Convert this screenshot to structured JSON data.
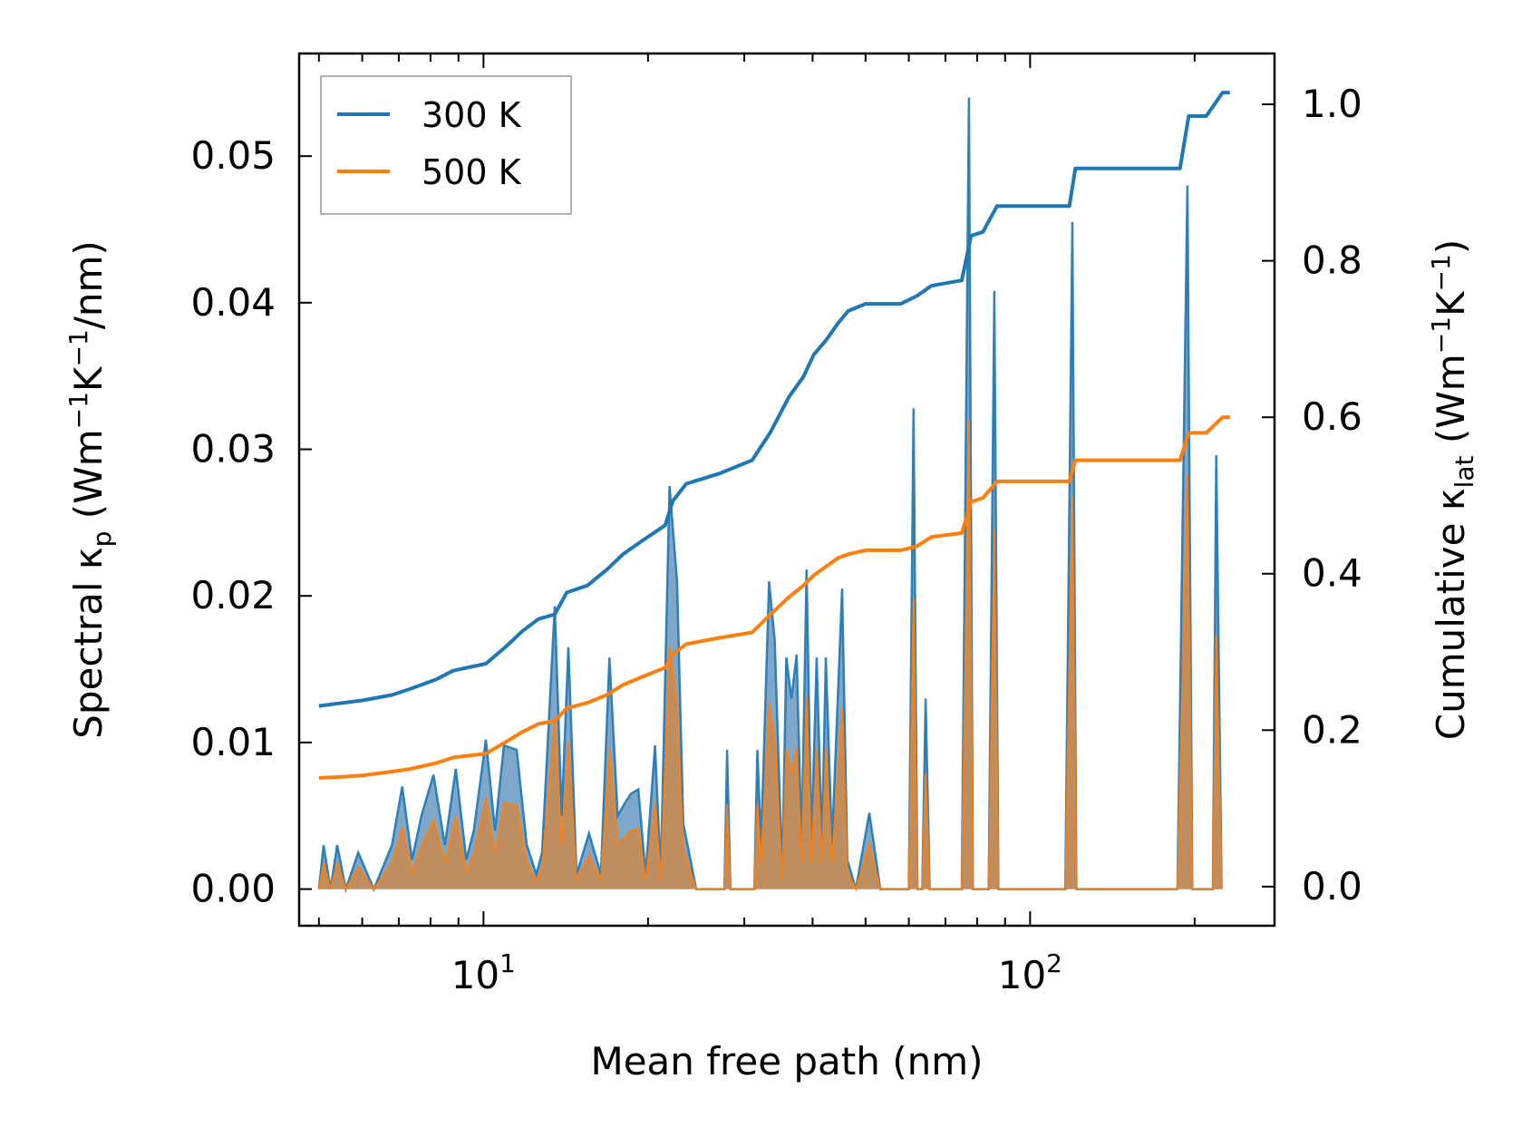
{
  "chart_data": {
    "type": "line",
    "x_scale": "log",
    "xlabel": "Mean free path (nm)",
    "ylabel_left": {
      "main": "Spectral κ",
      "sub": "p",
      "unit_open": " (Wm",
      "exp1": "−1",
      "mid": "K",
      "exp2": "−1",
      "unit_close": "/nm)"
    },
    "ylabel_right": {
      "main": "Cumulative κ",
      "sub": "lat",
      "unit_open": " (Wm",
      "exp1": "−1",
      "mid": "K",
      "exp2": "−1",
      "unit_close": ")"
    },
    "xlim": [
      4.6,
      280
    ],
    "ylim_left": [
      -0.0025,
      0.057
    ],
    "ylim_right": [
      -0.05,
      1.065
    ],
    "x_major_ticks": [
      {
        "value": 10,
        "base": "10",
        "exp": "1"
      },
      {
        "value": 100,
        "base": "10",
        "exp": "2"
      }
    ],
    "left_ticks": [
      {
        "value": 0.0,
        "label": "0.00"
      },
      {
        "value": 0.01,
        "label": "0.01"
      },
      {
        "value": 0.02,
        "label": "0.02"
      },
      {
        "value": 0.03,
        "label": "0.03"
      },
      {
        "value": 0.04,
        "label": "0.04"
      },
      {
        "value": 0.05,
        "label": "0.05"
      }
    ],
    "right_ticks": [
      {
        "value": 0.0,
        "label": "0.0"
      },
      {
        "value": 0.2,
        "label": "0.2"
      },
      {
        "value": 0.4,
        "label": "0.4"
      },
      {
        "value": 0.6,
        "label": "0.6"
      },
      {
        "value": 0.8,
        "label": "0.8"
      },
      {
        "value": 1.0,
        "label": "1.0"
      }
    ],
    "legend": {
      "position": "top-left"
    },
    "series": [
      {
        "name": "300 K",
        "color": "#1f77b4",
        "cumulative": [
          [
            5.0,
            0.231
          ],
          [
            5.4,
            0.234
          ],
          [
            6.0,
            0.238
          ],
          [
            6.8,
            0.245
          ],
          [
            7.3,
            0.252
          ],
          [
            8.2,
            0.265
          ],
          [
            8.8,
            0.276
          ],
          [
            10.1,
            0.285
          ],
          [
            11.0,
            0.307
          ],
          [
            11.8,
            0.327
          ],
          [
            12.6,
            0.342
          ],
          [
            13.5,
            0.348
          ],
          [
            14.2,
            0.376
          ],
          [
            15.5,
            0.385
          ],
          [
            16.8,
            0.405
          ],
          [
            18.0,
            0.425
          ],
          [
            19.5,
            0.442
          ],
          [
            21.5,
            0.462
          ],
          [
            22.2,
            0.493
          ],
          [
            23.5,
            0.515
          ],
          [
            27.0,
            0.528
          ],
          [
            31.0,
            0.545
          ],
          [
            33.5,
            0.581
          ],
          [
            36.2,
            0.626
          ],
          [
            38.5,
            0.652
          ],
          [
            40.2,
            0.68
          ],
          [
            42.5,
            0.7
          ],
          [
            44.5,
            0.72
          ],
          [
            46.5,
            0.736
          ],
          [
            50.0,
            0.745
          ],
          [
            58.0,
            0.745
          ],
          [
            62.0,
            0.755
          ],
          [
            66.0,
            0.768
          ],
          [
            75.0,
            0.775
          ],
          [
            78.0,
            0.832
          ],
          [
            82.0,
            0.837
          ],
          [
            87.0,
            0.87
          ],
          [
            118.0,
            0.87
          ],
          [
            121.0,
            0.918
          ],
          [
            188.0,
            0.918
          ],
          [
            195.0,
            0.985
          ],
          [
            210.0,
            0.985
          ],
          [
            225.0,
            1.015
          ],
          [
            232.0,
            1.015
          ]
        ],
        "spectral": [
          [
            5.0,
            0.0
          ],
          [
            5.1,
            0.003
          ],
          [
            5.25,
            0.0
          ],
          [
            5.4,
            0.003
          ],
          [
            5.6,
            0.0
          ],
          [
            5.9,
            0.0025
          ],
          [
            6.3,
            0.0
          ],
          [
            6.8,
            0.003
          ],
          [
            7.1,
            0.007
          ],
          [
            7.4,
            0.002
          ],
          [
            7.7,
            0.005
          ],
          [
            8.1,
            0.0078
          ],
          [
            8.5,
            0.003
          ],
          [
            8.9,
            0.0082
          ],
          [
            9.3,
            0.002
          ],
          [
            9.6,
            0.004
          ],
          [
            10.1,
            0.0102
          ],
          [
            10.5,
            0.004
          ],
          [
            10.9,
            0.0098
          ],
          [
            11.5,
            0.0095
          ],
          [
            12.0,
            0.003
          ],
          [
            12.5,
            0.001
          ],
          [
            12.8,
            0.0025
          ],
          [
            13.5,
            0.0193
          ],
          [
            13.9,
            0.005
          ],
          [
            14.3,
            0.0165
          ],
          [
            14.8,
            0.001
          ],
          [
            15.6,
            0.0038
          ],
          [
            16.4,
            0.001
          ],
          [
            17.0,
            0.0158
          ],
          [
            17.6,
            0.005
          ],
          [
            18.1,
            0.0058
          ],
          [
            18.6,
            0.0065
          ],
          [
            19.2,
            0.0068
          ],
          [
            19.8,
            0.001
          ],
          [
            20.6,
            0.0098
          ],
          [
            21.1,
            0.001
          ],
          [
            21.9,
            0.0275
          ],
          [
            22.6,
            0.021
          ],
          [
            23.2,
            0.0045
          ],
          [
            24.5,
            0.0
          ],
          [
            27.6,
            0.0
          ],
          [
            27.9,
            0.0095
          ],
          [
            28.3,
            0.0
          ],
          [
            31.3,
            0.0
          ],
          [
            31.7,
            0.0095
          ],
          [
            32.2,
            0.003
          ],
          [
            33.3,
            0.021
          ],
          [
            34.1,
            0.017
          ],
          [
            35.2,
            0.001
          ],
          [
            35.8,
            0.0158
          ],
          [
            36.6,
            0.013
          ],
          [
            37.4,
            0.016
          ],
          [
            38.2,
            0.003
          ],
          [
            39.0,
            0.0218
          ],
          [
            39.8,
            0.003
          ],
          [
            40.7,
            0.0158
          ],
          [
            41.6,
            0.003
          ],
          [
            42.3,
            0.0158
          ],
          [
            43.4,
            0.003
          ],
          [
            45.3,
            0.0205
          ],
          [
            46.3,
            0.002
          ],
          [
            48.0,
            0.0
          ],
          [
            50.8,
            0.0052
          ],
          [
            53.2,
            0.0
          ],
          [
            58.0,
            0.0
          ],
          [
            60.0,
            0.0
          ],
          [
            61.2,
            0.0328
          ],
          [
            62.2,
            0.0
          ],
          [
            63.5,
            0.0
          ],
          [
            64.4,
            0.013
          ],
          [
            65.5,
            0.0
          ],
          [
            75.0,
            0.0
          ],
          [
            77.3,
            0.054
          ],
          [
            78.6,
            0.0
          ],
          [
            84.0,
            0.0
          ],
          [
            86.0,
            0.0408
          ],
          [
            87.5,
            0.0
          ],
          [
            116.0,
            0.0
          ],
          [
            119.5,
            0.0455
          ],
          [
            121.5,
            0.0
          ],
          [
            186.0,
            0.0
          ],
          [
            194.0,
            0.048
          ],
          [
            198.0,
            0.0
          ],
          [
            216.0,
            0.0
          ],
          [
            219.0,
            0.0296
          ],
          [
            224.0,
            0.0
          ]
        ]
      },
      {
        "name": "500 K",
        "color": "#ff7f0e",
        "cumulative": [
          [
            5.0,
            0.139
          ],
          [
            5.4,
            0.14
          ],
          [
            6.0,
            0.142
          ],
          [
            6.8,
            0.147
          ],
          [
            7.3,
            0.15
          ],
          [
            8.2,
            0.158
          ],
          [
            8.8,
            0.165
          ],
          [
            10.1,
            0.17
          ],
          [
            11.0,
            0.185
          ],
          [
            11.8,
            0.198
          ],
          [
            12.6,
            0.208
          ],
          [
            13.5,
            0.212
          ],
          [
            14.2,
            0.228
          ],
          [
            15.5,
            0.235
          ],
          [
            16.8,
            0.245
          ],
          [
            18.0,
            0.258
          ],
          [
            19.5,
            0.268
          ],
          [
            21.5,
            0.28
          ],
          [
            22.2,
            0.297
          ],
          [
            23.5,
            0.31
          ],
          [
            27.0,
            0.318
          ],
          [
            31.0,
            0.325
          ],
          [
            33.5,
            0.348
          ],
          [
            36.2,
            0.37
          ],
          [
            38.5,
            0.385
          ],
          [
            40.2,
            0.398
          ],
          [
            42.5,
            0.41
          ],
          [
            44.5,
            0.42
          ],
          [
            46.5,
            0.425
          ],
          [
            50.0,
            0.43
          ],
          [
            58.0,
            0.43
          ],
          [
            62.0,
            0.435
          ],
          [
            66.0,
            0.447
          ],
          [
            75.0,
            0.452
          ],
          [
            78.0,
            0.492
          ],
          [
            82.0,
            0.497
          ],
          [
            87.0,
            0.518
          ],
          [
            118.0,
            0.518
          ],
          [
            121.0,
            0.545
          ],
          [
            188.0,
            0.545
          ],
          [
            195.0,
            0.58
          ],
          [
            210.0,
            0.58
          ],
          [
            225.0,
            0.6
          ],
          [
            232.0,
            0.6
          ]
        ],
        "spectral": [
          [
            5.0,
            0.0
          ],
          [
            5.1,
            0.0018
          ],
          [
            5.25,
            0.0
          ],
          [
            5.4,
            0.0018
          ],
          [
            5.6,
            0.0
          ],
          [
            5.9,
            0.0015
          ],
          [
            6.3,
            0.0
          ],
          [
            6.8,
            0.0018
          ],
          [
            7.1,
            0.0042
          ],
          [
            7.4,
            0.0012
          ],
          [
            7.7,
            0.003
          ],
          [
            8.1,
            0.0047
          ],
          [
            8.5,
            0.0018
          ],
          [
            8.9,
            0.005
          ],
          [
            9.3,
            0.0012
          ],
          [
            9.6,
            0.0024
          ],
          [
            10.1,
            0.0062
          ],
          [
            10.5,
            0.0024
          ],
          [
            10.9,
            0.0059
          ],
          [
            11.5,
            0.0057
          ],
          [
            12.0,
            0.0018
          ],
          [
            12.5,
            0.0006
          ],
          [
            12.8,
            0.0015
          ],
          [
            13.5,
            0.0117
          ],
          [
            13.9,
            0.003
          ],
          [
            14.3,
            0.01
          ],
          [
            14.8,
            0.0006
          ],
          [
            15.6,
            0.0023
          ],
          [
            16.4,
            0.0006
          ],
          [
            17.0,
            0.0096
          ],
          [
            17.6,
            0.003
          ],
          [
            18.1,
            0.0035
          ],
          [
            18.6,
            0.004
          ],
          [
            19.2,
            0.0041
          ],
          [
            19.8,
            0.0006
          ],
          [
            20.6,
            0.006
          ],
          [
            21.1,
            0.0006
          ],
          [
            21.9,
            0.0165
          ],
          [
            22.6,
            0.0127
          ],
          [
            23.2,
            0.0027
          ],
          [
            24.5,
            0.0
          ],
          [
            27.6,
            0.0
          ],
          [
            27.9,
            0.0058
          ],
          [
            28.3,
            0.0
          ],
          [
            31.3,
            0.0
          ],
          [
            31.7,
            0.0058
          ],
          [
            32.2,
            0.0018
          ],
          [
            33.3,
            0.0127
          ],
          [
            34.1,
            0.0103
          ],
          [
            35.2,
            0.0006
          ],
          [
            35.8,
            0.0096
          ],
          [
            36.6,
            0.0079
          ],
          [
            37.4,
            0.0097
          ],
          [
            38.2,
            0.0018
          ],
          [
            39.0,
            0.0132
          ],
          [
            39.8,
            0.0018
          ],
          [
            40.7,
            0.0096
          ],
          [
            41.6,
            0.0018
          ],
          [
            42.3,
            0.0096
          ],
          [
            43.4,
            0.0018
          ],
          [
            45.3,
            0.0124
          ],
          [
            46.3,
            0.0012
          ],
          [
            48.0,
            0.0
          ],
          [
            50.8,
            0.0031
          ],
          [
            53.2,
            0.0
          ],
          [
            58.0,
            0.0
          ],
          [
            60.0,
            0.0
          ],
          [
            61.2,
            0.0199
          ],
          [
            62.2,
            0.0
          ],
          [
            63.5,
            0.0
          ],
          [
            64.4,
            0.0079
          ],
          [
            65.5,
            0.0
          ],
          [
            75.0,
            0.0
          ],
          [
            77.3,
            0.032
          ],
          [
            78.6,
            0.0
          ],
          [
            84.0,
            0.0
          ],
          [
            86.0,
            0.0245
          ],
          [
            87.5,
            0.0
          ],
          [
            116.0,
            0.0
          ],
          [
            119.5,
            0.0268
          ],
          [
            121.5,
            0.0
          ],
          [
            186.0,
            0.0
          ],
          [
            194.0,
            0.0283
          ],
          [
            198.0,
            0.0
          ],
          [
            216.0,
            0.0
          ],
          [
            219.0,
            0.0173
          ],
          [
            224.0,
            0.0
          ]
        ]
      }
    ]
  }
}
